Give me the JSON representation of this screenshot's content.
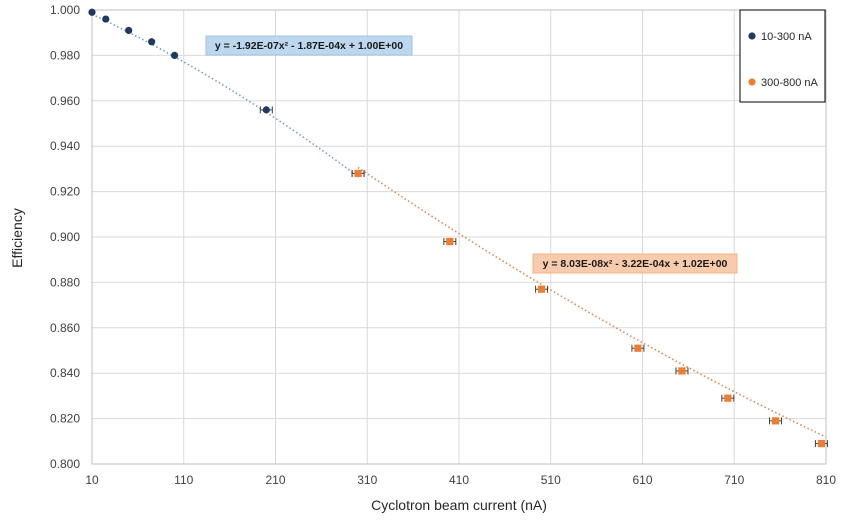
{
  "chart_data": {
    "type": "scatter",
    "title": "",
    "xlabel": "Cyclotron beam current (nA)",
    "ylabel": "Efficiency",
    "xlim": [
      10,
      810
    ],
    "ylim": [
      0.8,
      1.0
    ],
    "x_ticks": [
      "10",
      "110",
      "210",
      "310",
      "410",
      "510",
      "610",
      "710",
      "810"
    ],
    "y_ticks": [
      "0.800",
      "0.820",
      "0.840",
      "0.860",
      "0.880",
      "0.900",
      "0.920",
      "0.940",
      "0.960",
      "0.980",
      "1.000"
    ],
    "grid": true,
    "legend_position": "top-right",
    "series": [
      {
        "name": "10-300 nA",
        "color": "#1f3864",
        "marker": "circle",
        "points": [
          {
            "x": 10,
            "y": 0.999
          },
          {
            "x": 25,
            "y": 0.996
          },
          {
            "x": 50,
            "y": 0.991
          },
          {
            "x": 75,
            "y": 0.986
          },
          {
            "x": 100,
            "y": 0.98
          },
          {
            "x": 200,
            "y": 0.956
          },
          {
            "x": 300,
            "y": 0.928
          }
        ],
        "trendline": {
          "type": "poly2",
          "a": -1.92e-07,
          "b": -0.000187,
          "c": 1.0,
          "x_range": [
            10,
            300
          ],
          "color": "#6fa0d0"
        },
        "equation": "y = -1.92E-07x² - 1.87E-04x + 1.00E+00"
      },
      {
        "name": "300-800 nA",
        "color": "#ed7d31",
        "marker": "square",
        "points": [
          {
            "x": 300,
            "y": 0.928
          },
          {
            "x": 400,
            "y": 0.898
          },
          {
            "x": 500,
            "y": 0.877
          },
          {
            "x": 605,
            "y": 0.851
          },
          {
            "x": 653,
            "y": 0.841
          },
          {
            "x": 703,
            "y": 0.829
          },
          {
            "x": 755,
            "y": 0.819
          },
          {
            "x": 805,
            "y": 0.809
          }
        ],
        "trendline": {
          "type": "poly2",
          "a": 8.03e-08,
          "b": -0.000322,
          "c": 1.02,
          "x_range": [
            300,
            810
          ],
          "color": "#e0884a"
        },
        "equation": "y = 8.03E-08x² - 3.22E-04x + 1.02E+00"
      }
    ]
  }
}
